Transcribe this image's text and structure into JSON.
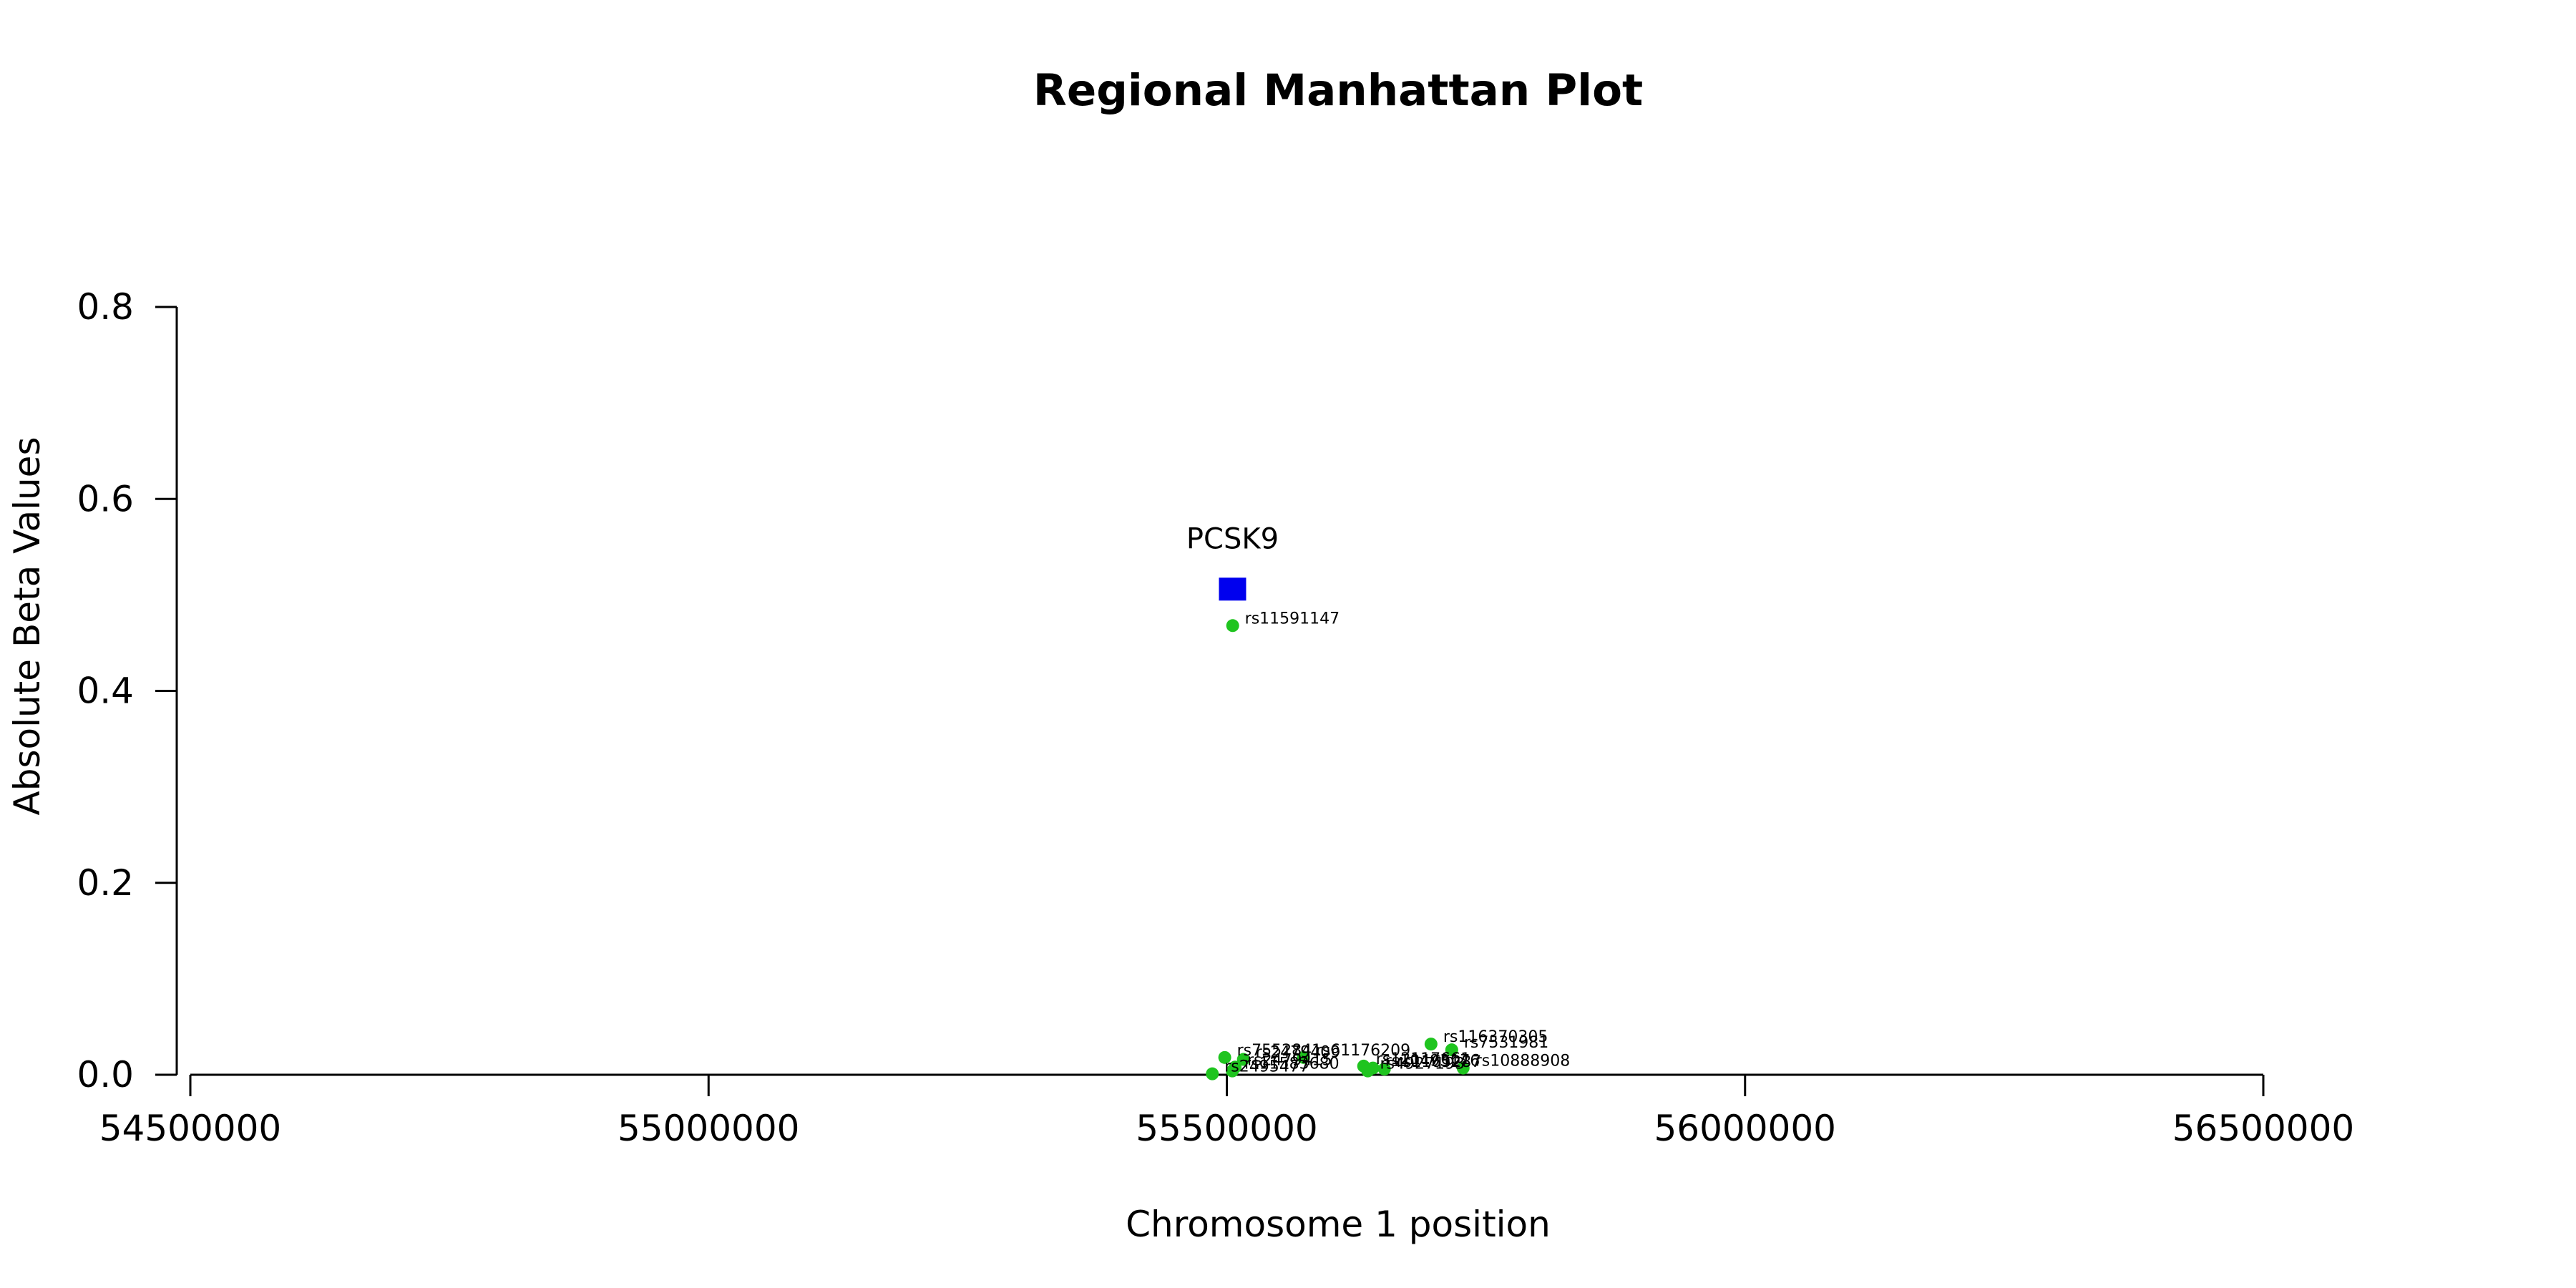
{
  "chart_data": {
    "type": "scatter",
    "title": "Regional Manhattan Plot",
    "xlabel": "Chromosome 1 position",
    "ylabel": "Absolute Beta Values",
    "xlim": [
      54500000,
      56500000
    ],
    "ylim": [
      0.0,
      0.8
    ],
    "xticks": [
      54500000,
      55000000,
      55500000,
      56000000,
      56500000
    ],
    "yticks": [
      0.0,
      0.2,
      0.4,
      0.6,
      0.8
    ],
    "xtick_labels": [
      "54500000",
      "55000000",
      "55500000",
      "56000000",
      "56500000"
    ],
    "ytick_labels": [
      "0.0",
      "0.2",
      "0.4",
      "0.6",
      "0.8"
    ],
    "grid": false,
    "colors": {
      "snp": "#1fc41f",
      "gene": "#0000ee",
      "axis": "#000000"
    },
    "gene": {
      "name": "PCSK9",
      "x": 55505500,
      "y": 0.506,
      "marker": "square"
    },
    "snps": [
      {
        "label": "rs11591147",
        "x": 55505647,
        "y": 0.468
      },
      {
        "label": "rs116370305",
        "x": 55697000,
        "y": 0.032
      },
      {
        "label": "rs7531981",
        "x": 55717000,
        "y": 0.026
      },
      {
        "label": "rs7552841",
        "x": 55498000,
        "y": 0.018
      },
      {
        "label": "rs2479409",
        "x": 55516000,
        "y": 0.016
      },
      {
        "label": "rs61176209",
        "x": 55574000,
        "y": 0.018
      },
      {
        "label": "rs2479415",
        "x": 55508000,
        "y": 0.008
      },
      {
        "label": "rs11583680",
        "x": 55505300,
        "y": 0.004
      },
      {
        "label": "rs2495477",
        "x": 55486000,
        "y": 0.001
      },
      {
        "label": "rs10888908",
        "x": 55728000,
        "y": 0.007
      },
      {
        "label": "rs12117661",
        "x": 55632000,
        "y": 0.009
      },
      {
        "label": "rs10493176",
        "x": 55641000,
        "y": 0.007
      },
      {
        "label": "rs1165287",
        "x": 55652000,
        "y": 0.006
      },
      {
        "label": "rs4927193",
        "x": 55636000,
        "y": 0.004
      }
    ]
  }
}
